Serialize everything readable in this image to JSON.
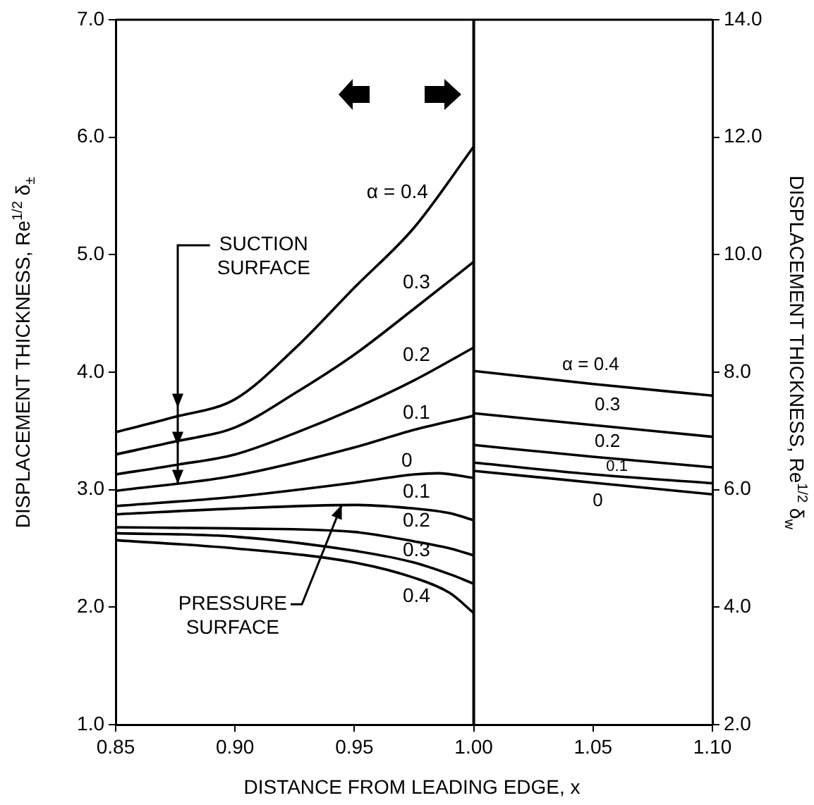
{
  "chart_data": {
    "type": "line",
    "xlabel": "DISTANCE FROM LEADING EDGE, x",
    "ylabel": "DISPLACEMENT THICKNESS, Re$^{1/2}$ δ$_{±}$",
    "y2label": "DISPLACEMENT THICKNESS, Re$^{1/2}$ δ$_{w}$",
    "xlim": [
      0.85,
      1.1
    ],
    "xticks": [
      {
        "value": 0.85,
        "label": "0.85"
      },
      {
        "value": 0.9,
        "label": "0.90"
      },
      {
        "value": 0.95,
        "label": "0.95"
      },
      {
        "value": 1.0,
        "label": "1.00"
      },
      {
        "value": 1.05,
        "label": "1.05"
      },
      {
        "value": 1.1,
        "label": "1.10"
      }
    ],
    "ylim": [
      1,
      7
    ],
    "yticks": [
      {
        "value": 1,
        "label": "1.0"
      },
      {
        "value": 2,
        "label": "2.0"
      },
      {
        "value": 3,
        "label": "3.0"
      },
      {
        "value": 4,
        "label": "4.0"
      },
      {
        "value": 5,
        "label": "5.0"
      },
      {
        "value": 6,
        "label": "6.0"
      },
      {
        "value": 7,
        "label": "7.0"
      }
    ],
    "y2lim": [
      2,
      14
    ],
    "y2ticks": [
      {
        "value": 2,
        "label": "2.0"
      },
      {
        "value": 4,
        "label": "4.0"
      },
      {
        "value": 6,
        "label": "6.0"
      },
      {
        "value": 8,
        "label": "8.0"
      },
      {
        "value": 10,
        "label": "10.0"
      },
      {
        "value": 12,
        "label": "12.0"
      },
      {
        "value": 14,
        "label": "14.0"
      }
    ],
    "grid": false,
    "legend": false,
    "marker": "none",
    "line_style": "solid",
    "series": [
      {
        "color": "#000000",
        "x": [
          0.85,
          0.875,
          0.9,
          0.925,
          0.95,
          0.975,
          1.0
        ],
        "values": [
          3.49,
          3.62,
          3.77,
          4.2,
          4.72,
          5.23,
          5.92
        ]
      },
      {
        "color": "#000000",
        "x": [
          0.85,
          0.875,
          0.9,
          0.925,
          0.95,
          0.975,
          1.0
        ],
        "values": [
          3.3,
          3.41,
          3.53,
          3.82,
          4.15,
          4.54,
          4.94
        ]
      },
      {
        "color": "#000000",
        "x": [
          0.85,
          0.875,
          0.9,
          0.925,
          0.95,
          0.975,
          1.0
        ],
        "values": [
          3.13,
          3.21,
          3.3,
          3.48,
          3.69,
          3.93,
          4.21
        ]
      },
      {
        "color": "#000000",
        "x": [
          0.85,
          0.9,
          0.95,
          0.975,
          1.0
        ],
        "values": [
          2.99,
          3.12,
          3.36,
          3.51,
          3.63
        ]
      },
      {
        "color": "#000000",
        "x": [
          0.85,
          0.9,
          0.95,
          0.975,
          0.985,
          1.0
        ],
        "values": [
          2.86,
          2.94,
          3.06,
          3.13,
          3.14,
          3.1
        ]
      },
      {
        "color": "#000000",
        "x": [
          0.85,
          0.9,
          0.95,
          0.975,
          0.99,
          1.0
        ],
        "values": [
          2.79,
          2.84,
          2.87,
          2.84,
          2.8,
          2.74
        ]
      },
      {
        "color": "#000000",
        "x": [
          0.85,
          0.9,
          0.95,
          0.975,
          0.99,
          1.0
        ],
        "values": [
          2.68,
          2.67,
          2.64,
          2.56,
          2.5,
          2.44
        ]
      },
      {
        "color": "#000000",
        "x": [
          0.85,
          0.9,
          0.95,
          0.975,
          0.99,
          1.0
        ],
        "values": [
          2.63,
          2.6,
          2.48,
          2.38,
          2.28,
          2.2
        ]
      },
      {
        "color": "#000000",
        "x": [
          0.85,
          0.9,
          0.95,
          0.975,
          0.99,
          1.0
        ],
        "values": [
          2.57,
          2.5,
          2.38,
          2.25,
          2.12,
          1.95
        ]
      },
      {
        "color": "#000000",
        "axis": "y2",
        "x": [
          1.0,
          1.05,
          1.1
        ],
        "values": [
          8.02,
          7.8,
          7.6
        ]
      },
      {
        "color": "#000000",
        "axis": "y2",
        "x": [
          1.0,
          1.05,
          1.1
        ],
        "values": [
          7.3,
          7.1,
          6.9
        ]
      },
      {
        "color": "#000000",
        "axis": "y2",
        "x": [
          1.0,
          1.05,
          1.1
        ],
        "values": [
          6.76,
          6.56,
          6.38
        ]
      },
      {
        "color": "#000000",
        "axis": "y2",
        "x": [
          1.0,
          1.05,
          1.1
        ],
        "values": [
          6.46,
          6.26,
          6.11
        ]
      },
      {
        "color": "#000000",
        "axis": "y2",
        "x": [
          1.0,
          1.05,
          1.1
        ],
        "values": [
          6.32,
          6.12,
          5.92
        ]
      }
    ],
    "ref_lines": [
      {
        "axis": "x",
        "value": 1.0,
        "color": "#000000"
      }
    ],
    "annotations": [
      "α = 0.4",
      "0.3",
      "0.2",
      "0.1",
      "0",
      "0.1",
      "0.2",
      "0.3",
      "0.4",
      "α = 0.4",
      "0.3",
      "0.2",
      "0.1",
      "0",
      {
        "text": "SUCTION\nSURFACE",
        "x": 0.876,
        "y": 3.05
      },
      {
        "text": "PRESSURE\nSURFACE",
        "x": 0.945,
        "y": 2.87
      }
    ]
  }
}
